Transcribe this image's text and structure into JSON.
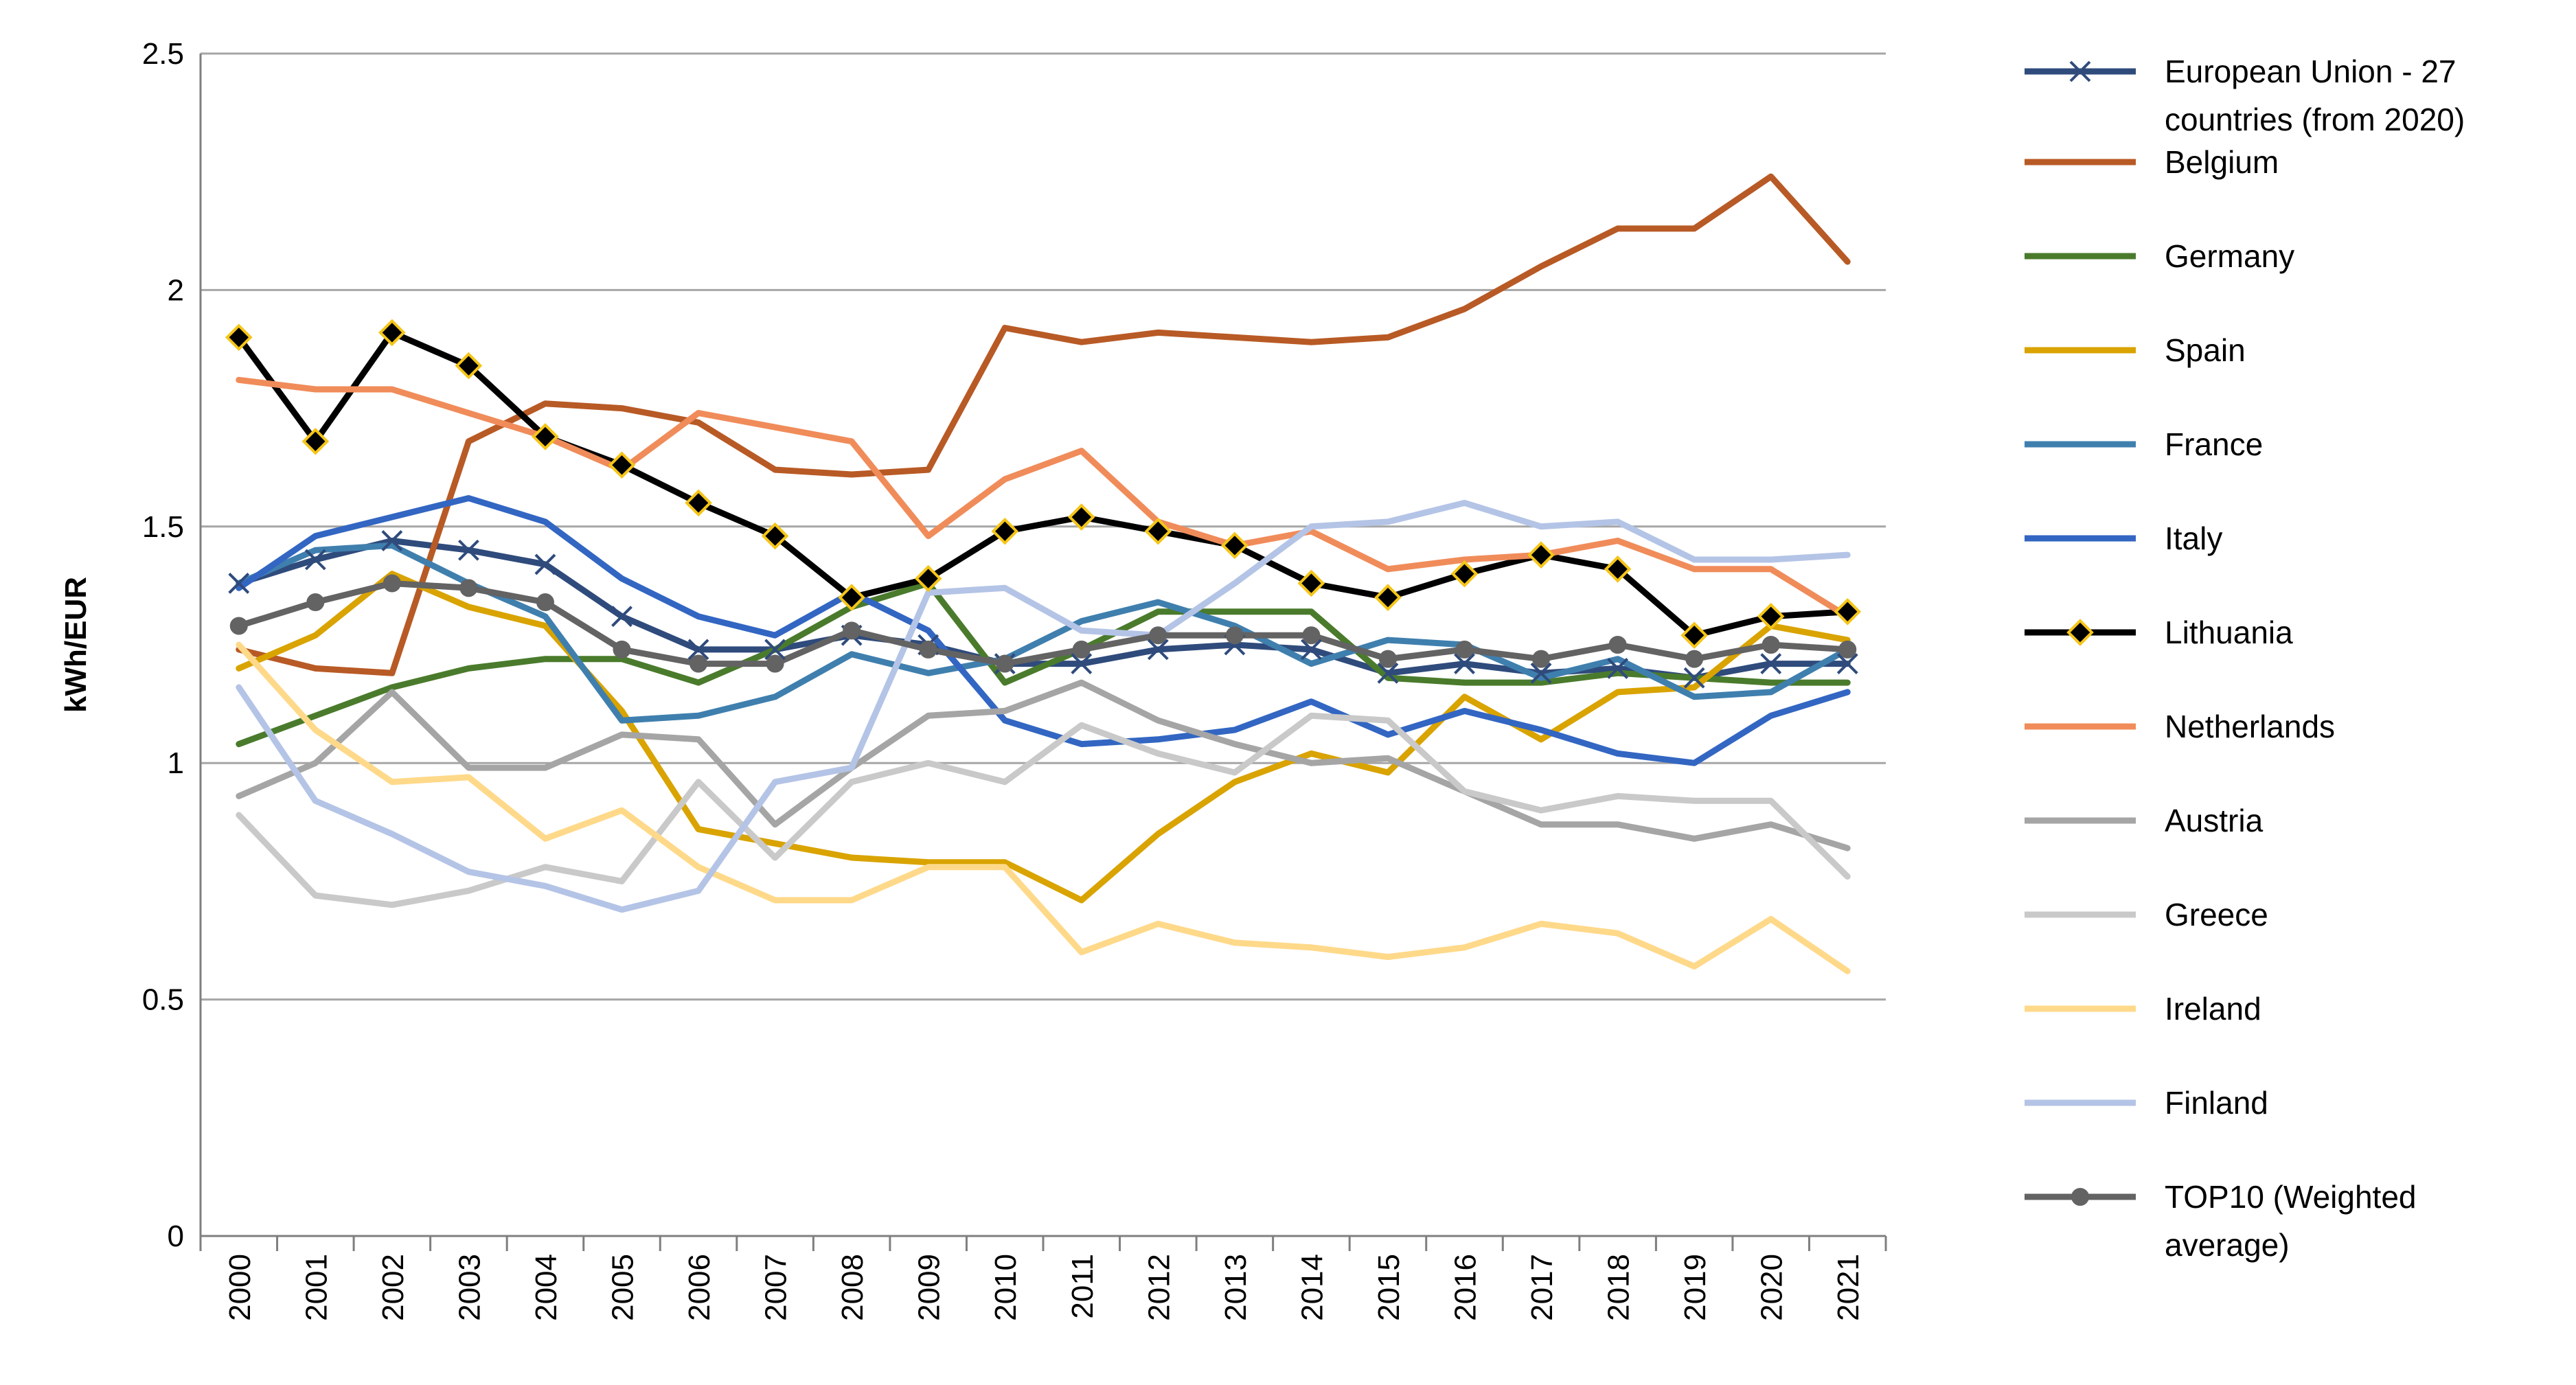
{
  "chart_data": {
    "type": "line",
    "title": "",
    "xlabel": "",
    "ylabel": "kWh/EUR",
    "ylim": [
      0,
      2.5
    ],
    "yticks": [
      "0",
      "0.5",
      "1",
      "1.5",
      "2",
      "2.5"
    ],
    "grid": true,
    "legend_position": "right",
    "x": [
      "2000",
      "2001",
      "2002",
      "2003",
      "2004",
      "2005",
      "2006",
      "2007",
      "2008",
      "2009",
      "2010",
      "2011",
      "2012",
      "2013",
      "2014",
      "2015",
      "2016",
      "2017",
      "2018",
      "2019",
      "2020",
      "2021"
    ],
    "series": [
      {
        "name": "European Union - 27 countries (from 2020)",
        "legend_lines": [
          "European Union - 27",
          "countries (from 2020)"
        ],
        "color": "#2F4B7C",
        "marker": "x",
        "values": [
          1.38,
          1.43,
          1.47,
          1.45,
          1.42,
          1.31,
          1.24,
          1.24,
          1.27,
          1.25,
          1.21,
          1.21,
          1.24,
          1.25,
          1.24,
          1.19,
          1.21,
          1.19,
          1.2,
          1.18,
          1.21,
          1.21
        ]
      },
      {
        "name": "Belgium",
        "legend_lines": [
          "Belgium"
        ],
        "color": "#B85A25",
        "marker": "none",
        "values": [
          1.24,
          1.2,
          1.19,
          1.68,
          1.76,
          1.75,
          1.72,
          1.62,
          1.61,
          1.62,
          1.92,
          1.89,
          1.91,
          1.9,
          1.89,
          1.9,
          1.96,
          2.05,
          2.13,
          2.13,
          2.24,
          2.06
        ]
      },
      {
        "name": "Germany",
        "legend_lines": [
          "Germany"
        ],
        "color": "#4A7B2C",
        "marker": "none",
        "values": [
          1.04,
          1.1,
          1.16,
          1.2,
          1.22,
          1.22,
          1.17,
          1.24,
          1.33,
          1.38,
          1.17,
          1.24,
          1.32,
          1.32,
          1.32,
          1.18,
          1.17,
          1.17,
          1.19,
          1.18,
          1.17,
          1.17
        ]
      },
      {
        "name": "Spain",
        "legend_lines": [
          "Spain"
        ],
        "color": "#D9A300",
        "marker": "none",
        "values": [
          1.2,
          1.27,
          1.4,
          1.33,
          1.29,
          1.11,
          0.86,
          0.83,
          0.8,
          0.79,
          0.79,
          0.71,
          0.85,
          0.96,
          1.02,
          0.98,
          1.14,
          1.05,
          1.15,
          1.16,
          1.29,
          1.26
        ]
      },
      {
        "name": "France",
        "legend_lines": [
          "France"
        ],
        "color": "#3F7FAE",
        "marker": "none",
        "values": [
          1.38,
          1.45,
          1.46,
          1.38,
          1.31,
          1.09,
          1.1,
          1.14,
          1.23,
          1.19,
          1.22,
          1.3,
          1.34,
          1.29,
          1.21,
          1.26,
          1.25,
          1.18,
          1.22,
          1.14,
          1.15,
          1.24
        ]
      },
      {
        "name": "Italy",
        "legend_lines": [
          "Italy"
        ],
        "color": "#3266C2",
        "marker": "none",
        "values": [
          1.37,
          1.48,
          1.52,
          1.56,
          1.51,
          1.39,
          1.31,
          1.27,
          1.36,
          1.28,
          1.09,
          1.04,
          1.05,
          1.07,
          1.13,
          1.06,
          1.11,
          1.07,
          1.02,
          1.0,
          1.1,
          1.15
        ]
      },
      {
        "name": "Lithuania",
        "legend_lines": [
          "Lithuania"
        ],
        "color": "#000000",
        "marker": "diamond",
        "values": [
          1.9,
          1.68,
          1.91,
          1.84,
          1.69,
          1.63,
          1.55,
          1.48,
          1.35,
          1.39,
          1.49,
          1.52,
          1.49,
          1.46,
          1.38,
          1.35,
          1.4,
          1.44,
          1.41,
          1.27,
          1.31,
          1.32
        ]
      },
      {
        "name": "Netherlands",
        "legend_lines": [
          "Netherlands"
        ],
        "color": "#F08C5A",
        "marker": "none",
        "values": [
          1.81,
          1.79,
          1.79,
          1.74,
          1.69,
          1.62,
          1.74,
          1.71,
          1.68,
          1.48,
          1.6,
          1.66,
          1.51,
          1.46,
          1.49,
          1.41,
          1.43,
          1.44,
          1.47,
          1.41,
          1.41,
          1.31
        ]
      },
      {
        "name": "Austria",
        "legend_lines": [
          "Austria"
        ],
        "color": "#A5A5A5",
        "marker": "none",
        "values": [
          0.93,
          1.0,
          1.15,
          0.99,
          0.99,
          1.06,
          1.05,
          0.87,
          0.99,
          1.1,
          1.11,
          1.17,
          1.09,
          1.04,
          1.0,
          1.01,
          0.94,
          0.87,
          0.87,
          0.84,
          0.87,
          0.82
        ]
      },
      {
        "name": "Greece",
        "legend_lines": [
          "Greece"
        ],
        "color": "#C9C9C9",
        "marker": "none",
        "values": [
          0.89,
          0.72,
          0.7,
          0.73,
          0.78,
          0.75,
          0.96,
          0.8,
          0.96,
          1.0,
          0.96,
          1.08,
          1.02,
          0.98,
          1.1,
          1.09,
          0.94,
          0.9,
          0.93,
          0.92,
          0.92,
          0.76
        ]
      },
      {
        "name": "Ireland",
        "legend_lines": [
          "Ireland"
        ],
        "color": "#FFD98A",
        "marker": "none",
        "values": [
          1.25,
          1.07,
          0.96,
          0.97,
          0.84,
          0.9,
          0.78,
          0.71,
          0.71,
          0.78,
          0.78,
          0.6,
          0.66,
          0.62,
          0.61,
          0.59,
          0.61,
          0.66,
          0.64,
          0.57,
          0.67,
          0.56
        ]
      },
      {
        "name": "Finland",
        "legend_lines": [
          "Finland"
        ],
        "color": "#B4C4E6",
        "marker": "none",
        "values": [
          1.16,
          0.92,
          0.85,
          0.77,
          0.74,
          0.69,
          0.73,
          0.96,
          0.99,
          1.36,
          1.37,
          1.28,
          1.27,
          1.38,
          1.5,
          1.51,
          1.55,
          1.5,
          1.51,
          1.43,
          1.43,
          1.44
        ]
      },
      {
        "name": "TOP10 (Weighted average)",
        "legend_lines": [
          "TOP10 (Weighted",
          "average)"
        ],
        "color": "#636363",
        "marker": "circle",
        "values": [
          1.29,
          1.34,
          1.38,
          1.37,
          1.34,
          1.24,
          1.21,
          1.21,
          1.28,
          1.24,
          1.21,
          1.24,
          1.27,
          1.27,
          1.27,
          1.22,
          1.24,
          1.22,
          1.25,
          1.22,
          1.25,
          1.24
        ]
      }
    ]
  }
}
